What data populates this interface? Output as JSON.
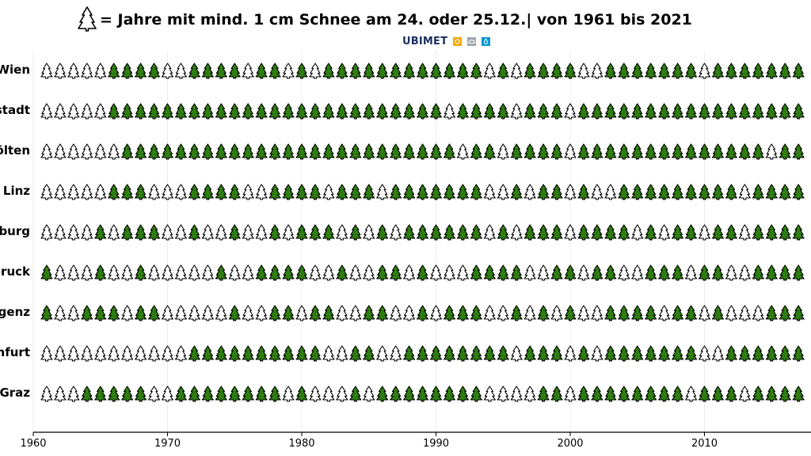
{
  "title": "= Jahre mit mind. 1 cm Schnee am 24. oder 25.12.| von 1961 bis 2021",
  "logo": {
    "text": "UBIMET",
    "colors": [
      "#f5a800",
      "#a0a7ad",
      "#0096d6"
    ]
  },
  "legend_icon": "outline-tree-icon",
  "colors": {
    "snow": "#2e7d10",
    "no_snow": "#ffffff",
    "outline": "#000000",
    "grid": "#ececec"
  },
  "chart_data": {
    "type": "scatter",
    "title": "= Jahre mit mind. 1 cm Schnee am 24. oder 25.12.| von 1961 bis 2021",
    "xlabel": "",
    "ylabel": "",
    "xlim": [
      1960,
      2018
    ],
    "xticks": [
      1960,
      1970,
      1980,
      1990,
      2000,
      2010
    ],
    "grid": true,
    "marker": "tree",
    "start_year": 1961,
    "series": [
      {
        "name": "Wien",
        "values": [
          0,
          0,
          0,
          0,
          0,
          1,
          1,
          1,
          1,
          0,
          0,
          1,
          1,
          1,
          1,
          0,
          1,
          1,
          0,
          1,
          0,
          1,
          1,
          1,
          1,
          1,
          1,
          1,
          1,
          1,
          1,
          1,
          1,
          0,
          1,
          0,
          1,
          1,
          1,
          1,
          0,
          0,
          1,
          1,
          1,
          1,
          1,
          1,
          1,
          0,
          1,
          1,
          1,
          1,
          1,
          1,
          1,
          1
        ]
      },
      {
        "name": "Eisenstadt",
        "values": [
          0,
          0,
          0,
          0,
          0,
          1,
          1,
          1,
          1,
          1,
          1,
          1,
          1,
          1,
          1,
          1,
          1,
          1,
          1,
          1,
          1,
          1,
          1,
          1,
          1,
          1,
          1,
          1,
          1,
          1,
          0,
          1,
          1,
          1,
          1,
          0,
          1,
          1,
          1,
          0,
          1,
          1,
          1,
          1,
          1,
          1,
          1,
          1,
          1,
          1,
          1,
          1,
          1,
          1,
          1,
          1,
          1,
          1
        ]
      },
      {
        "name": "St. Pölten",
        "values": [
          0,
          0,
          0,
          0,
          0,
          0,
          1,
          1,
          1,
          1,
          1,
          1,
          1,
          1,
          1,
          1,
          1,
          1,
          1,
          1,
          1,
          1,
          1,
          1,
          1,
          1,
          1,
          1,
          1,
          1,
          1,
          0,
          1,
          1,
          0,
          1,
          1,
          1,
          1,
          0,
          1,
          1,
          1,
          1,
          1,
          1,
          1,
          1,
          1,
          1,
          1,
          1,
          1,
          1,
          0,
          1,
          1,
          1
        ]
      },
      {
        "name": "Linz",
        "values": [
          0,
          0,
          0,
          0,
          0,
          1,
          1,
          1,
          0,
          0,
          0,
          1,
          1,
          1,
          1,
          0,
          0,
          1,
          1,
          1,
          1,
          0,
          1,
          1,
          1,
          0,
          1,
          1,
          1,
          1,
          1,
          1,
          1,
          0,
          0,
          1,
          0,
          1,
          1,
          0,
          1,
          0,
          0,
          1,
          1,
          1,
          1,
          1,
          1,
          1,
          1,
          1,
          0,
          1,
          1,
          1,
          1,
          1
        ]
      },
      {
        "name": "Salzburg",
        "values": [
          0,
          0,
          0,
          0,
          1,
          0,
          1,
          1,
          1,
          0,
          0,
          1,
          0,
          0,
          1,
          0,
          0,
          1,
          0,
          1,
          1,
          1,
          0,
          1,
          0,
          1,
          0,
          1,
          1,
          1,
          1,
          1,
          1,
          0,
          1,
          0,
          1,
          1,
          1,
          0,
          1,
          1,
          1,
          1,
          0,
          1,
          0,
          1,
          1,
          0,
          1,
          1,
          0,
          1,
          1,
          1,
          1,
          1
        ]
      },
      {
        "name": "Innsbruck",
        "values": [
          1,
          0,
          0,
          0,
          1,
          0,
          0,
          1,
          0,
          0,
          0,
          0,
          0,
          1,
          0,
          0,
          1,
          1,
          1,
          1,
          0,
          0,
          1,
          0,
          0,
          1,
          1,
          0,
          1,
          0,
          0,
          0,
          1,
          1,
          1,
          1,
          0,
          0,
          1,
          1,
          0,
          1,
          1,
          0,
          0,
          1,
          1,
          1,
          0,
          1,
          1,
          0,
          0,
          1,
          1,
          1,
          1,
          1
        ]
      },
      {
        "name": "Bregenz",
        "values": [
          1,
          0,
          0,
          1,
          1,
          1,
          0,
          1,
          1,
          0,
          0,
          0,
          0,
          0,
          1,
          0,
          0,
          1,
          1,
          0,
          1,
          1,
          0,
          0,
          1,
          1,
          0,
          0,
          1,
          0,
          1,
          1,
          1,
          0,
          0,
          1,
          0,
          1,
          0,
          1,
          0,
          0,
          1,
          1,
          1,
          1,
          0,
          1,
          1,
          0,
          1,
          0,
          0,
          0,
          1,
          1,
          1,
          1
        ]
      },
      {
        "name": "Klagenfurt",
        "values": [
          0,
          0,
          0,
          0,
          0,
          0,
          0,
          0,
          0,
          0,
          0,
          1,
          1,
          1,
          1,
          1,
          1,
          1,
          1,
          1,
          1,
          0,
          0,
          1,
          1,
          0,
          0,
          1,
          1,
          1,
          1,
          1,
          1,
          1,
          1,
          0,
          1,
          1,
          1,
          0,
          1,
          0,
          1,
          1,
          1,
          1,
          1,
          1,
          1,
          0,
          0,
          1,
          1,
          1,
          1,
          1,
          1,
          1
        ]
      },
      {
        "name": "Graz",
        "values": [
          0,
          0,
          0,
          1,
          1,
          1,
          1,
          1,
          0,
          0,
          1,
          1,
          1,
          1,
          1,
          1,
          1,
          1,
          0,
          1,
          0,
          0,
          0,
          1,
          0,
          1,
          1,
          1,
          1,
          1,
          1,
          1,
          1,
          0,
          0,
          0,
          0,
          1,
          1,
          0,
          1,
          1,
          1,
          1,
          1,
          1,
          1,
          1,
          0,
          1,
          1,
          1,
          0,
          1,
          1,
          1,
          1,
          1
        ]
      }
    ]
  }
}
